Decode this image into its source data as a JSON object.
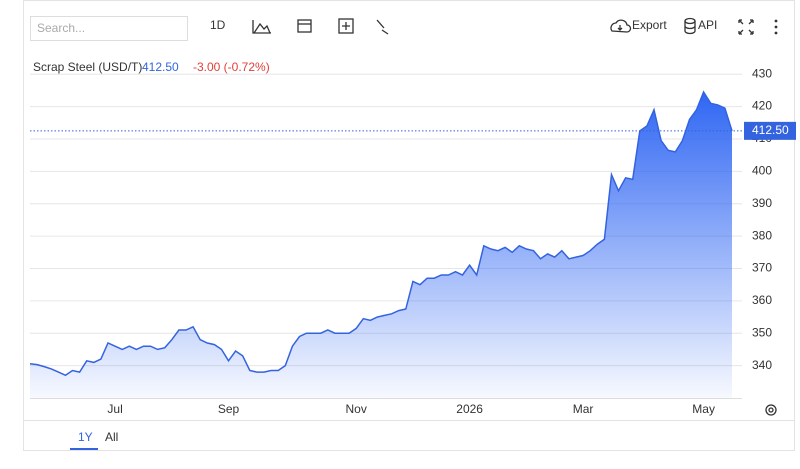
{
  "toolbar": {
    "search": "Search...",
    "interval": "1D",
    "export": "Export",
    "api": "API"
  },
  "range_tabs": [
    "1Y",
    "All"
  ],
  "chart_data": {
    "type": "area",
    "categories": [
      null,
      null,
      null,
      null,
      null,
      null,
      null,
      null,
      null,
      null,
      null,
      null,
      "Jul",
      null,
      null,
      null,
      null,
      null,
      null,
      null,
      null,
      null,
      null,
      null,
      null,
      null,
      null,
      null,
      "Sep",
      null,
      null,
      null,
      null,
      null,
      null,
      null,
      null,
      null,
      null,
      null,
      null,
      null,
      null,
      null,
      null,
      null,
      "Nov",
      null,
      null,
      null,
      null,
      null,
      null,
      null,
      null,
      null,
      null,
      null,
      null,
      null,
      null,
      null,
      "2026",
      null,
      null,
      null,
      null,
      null,
      null,
      null,
      null,
      null,
      null,
      null,
      null,
      null,
      null,
      null,
      "Mar",
      null,
      null,
      null,
      null,
      null,
      null,
      null,
      null,
      null,
      null,
      null,
      null,
      null,
      null,
      null,
      null,
      "May",
      null,
      null,
      null,
      null
    ],
    "series": [
      {
        "name": "Scrap Steel (USD/T)",
        "color": "#3463e0",
        "values": [
          340.6,
          340.3,
          339.7,
          339,
          338,
          337,
          338.5,
          338,
          341.5,
          341,
          342,
          347,
          346,
          345,
          346,
          345,
          346,
          346,
          345,
          345.5,
          348,
          351,
          351,
          352,
          348,
          347,
          346.5,
          345,
          341.5,
          344.5,
          343,
          338.5,
          338,
          338,
          338.5,
          338.5,
          340,
          346,
          349,
          350,
          350,
          350,
          351,
          350,
          350,
          350,
          351.5,
          354.5,
          354,
          355,
          355.5,
          356,
          357,
          357.5,
          366,
          365,
          367,
          367,
          368,
          368,
          369,
          368,
          371,
          368,
          377,
          376,
          375.5,
          376.5,
          375,
          377,
          376,
          375.5,
          373,
          374.5,
          373.5,
          375.5,
          373,
          373.5,
          374,
          375.5,
          377.5,
          379,
          399,
          394,
          398,
          397.5,
          412.5,
          414,
          419,
          409.5,
          406.5,
          406,
          409.5,
          416,
          419,
          424.5,
          421,
          420.5,
          419.5,
          412.5
        ]
      }
    ],
    "last_price": "412.50",
    "change": "-3.00 (-0.72%)",
    "change_color": "#e0413a",
    "ylim": [
      330,
      435
    ],
    "yticks": [
      340,
      350,
      360,
      370,
      380,
      390,
      400,
      410,
      420,
      430
    ],
    "grid": true
  }
}
